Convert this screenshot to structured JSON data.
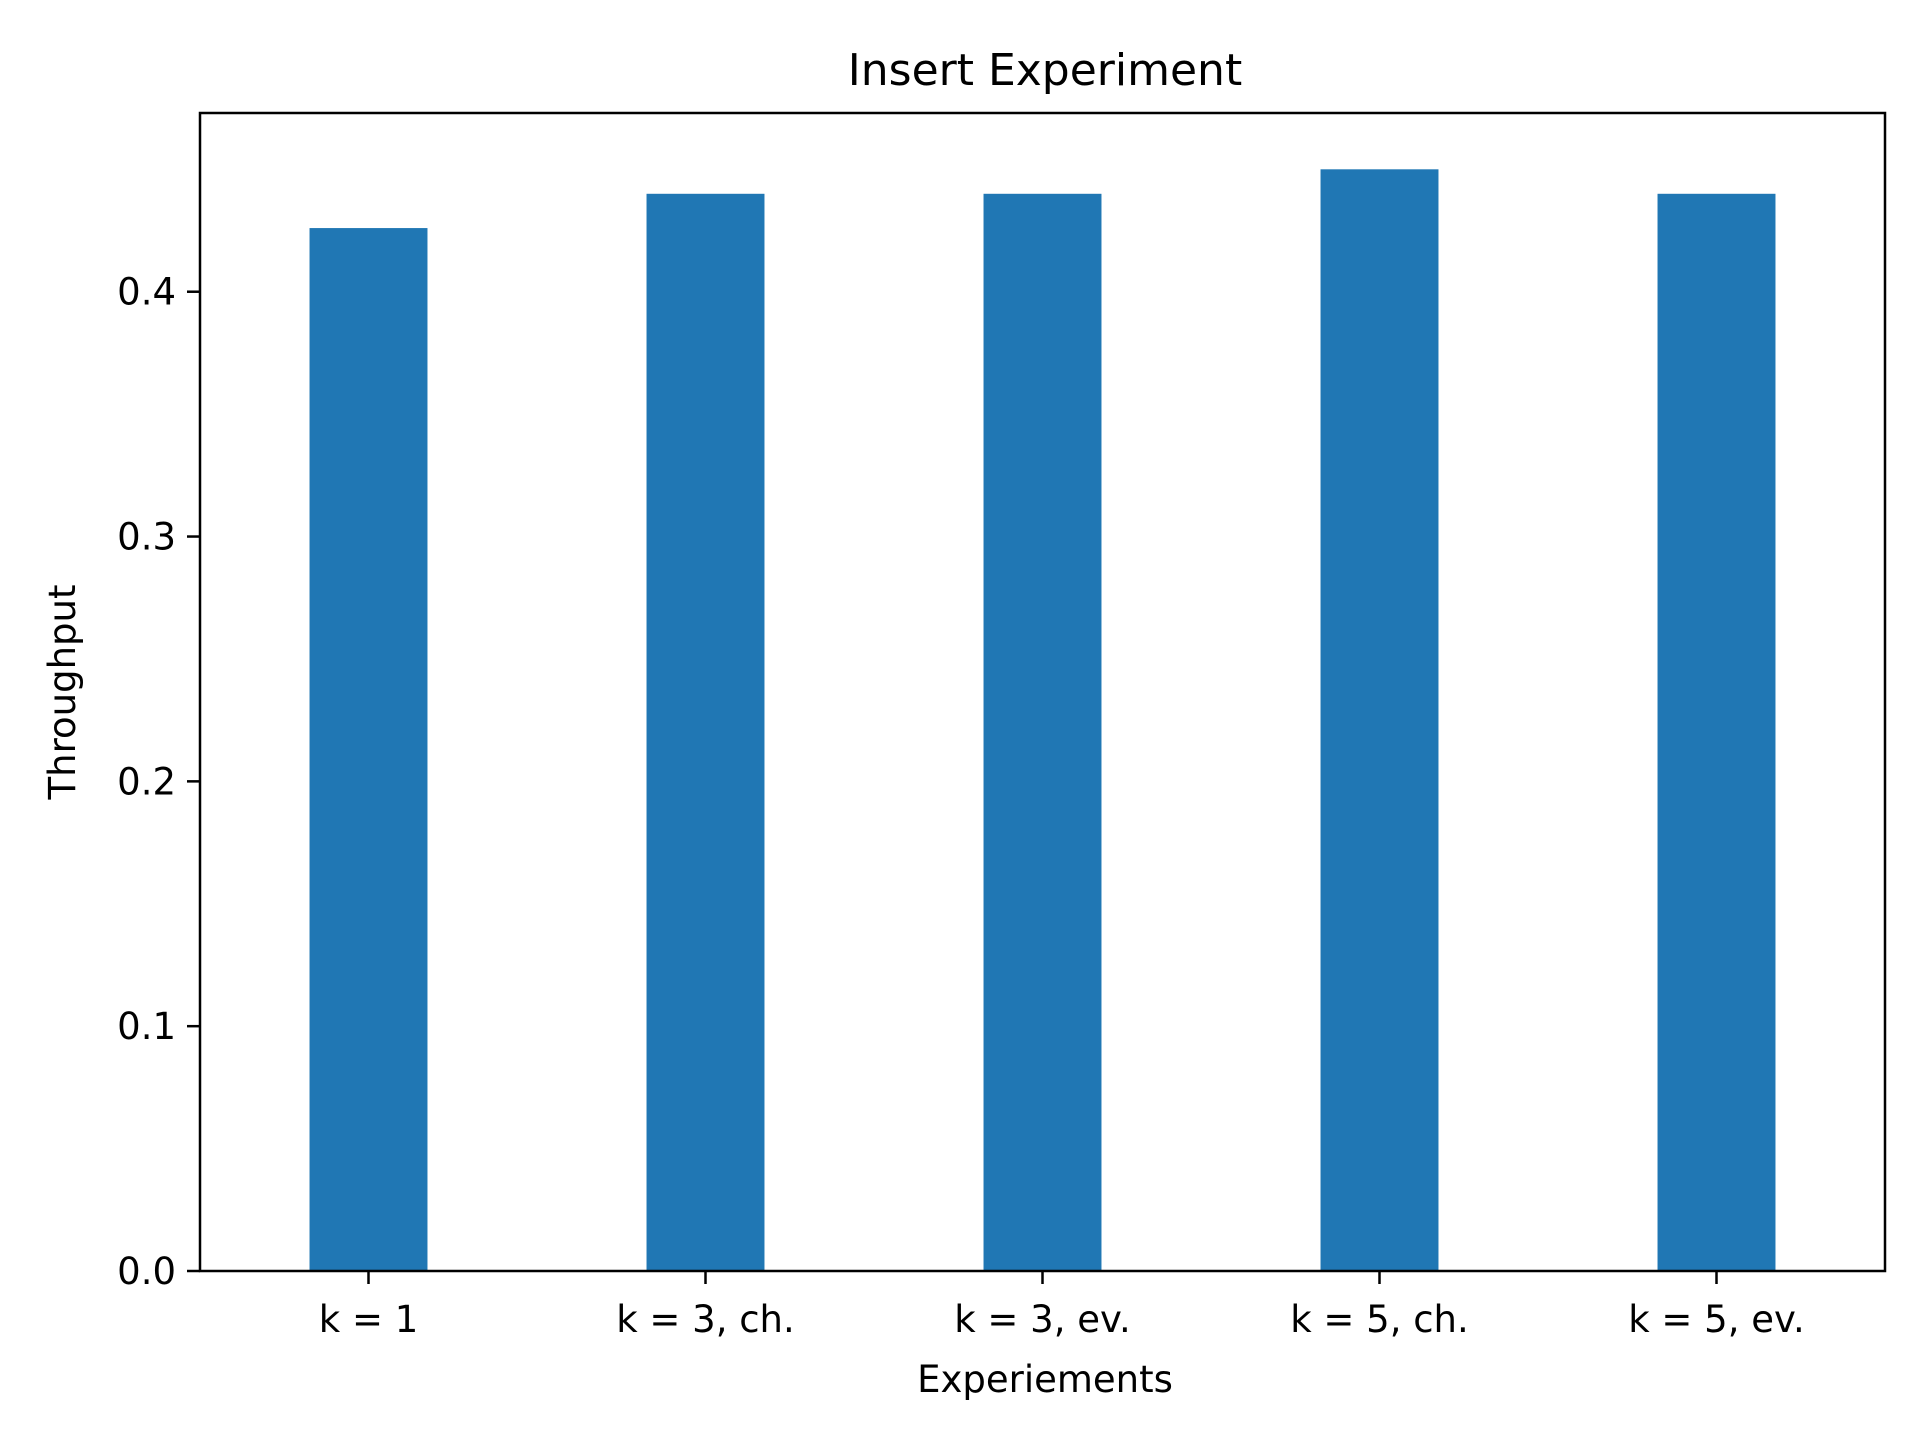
{
  "chart_data": {
    "type": "bar",
    "title": "Insert Experiment",
    "xlabel": "Experiements",
    "ylabel": "Throughput",
    "categories": [
      "k = 1",
      "k = 3, ch.",
      "k = 3, ev.",
      "k = 5, ch.",
      "k = 5, ev."
    ],
    "values": [
      0.426,
      0.44,
      0.44,
      0.45,
      0.44
    ],
    "ylim": [
      0,
      0.473
    ],
    "yticks": [
      0.0,
      0.1,
      0.2,
      0.3,
      0.4
    ],
    "ytick_labels": [
      "0.0",
      "0.1",
      "0.2",
      "0.3",
      "0.4"
    ],
    "grid": false,
    "legend": false,
    "bar_color": "#2077b4"
  }
}
